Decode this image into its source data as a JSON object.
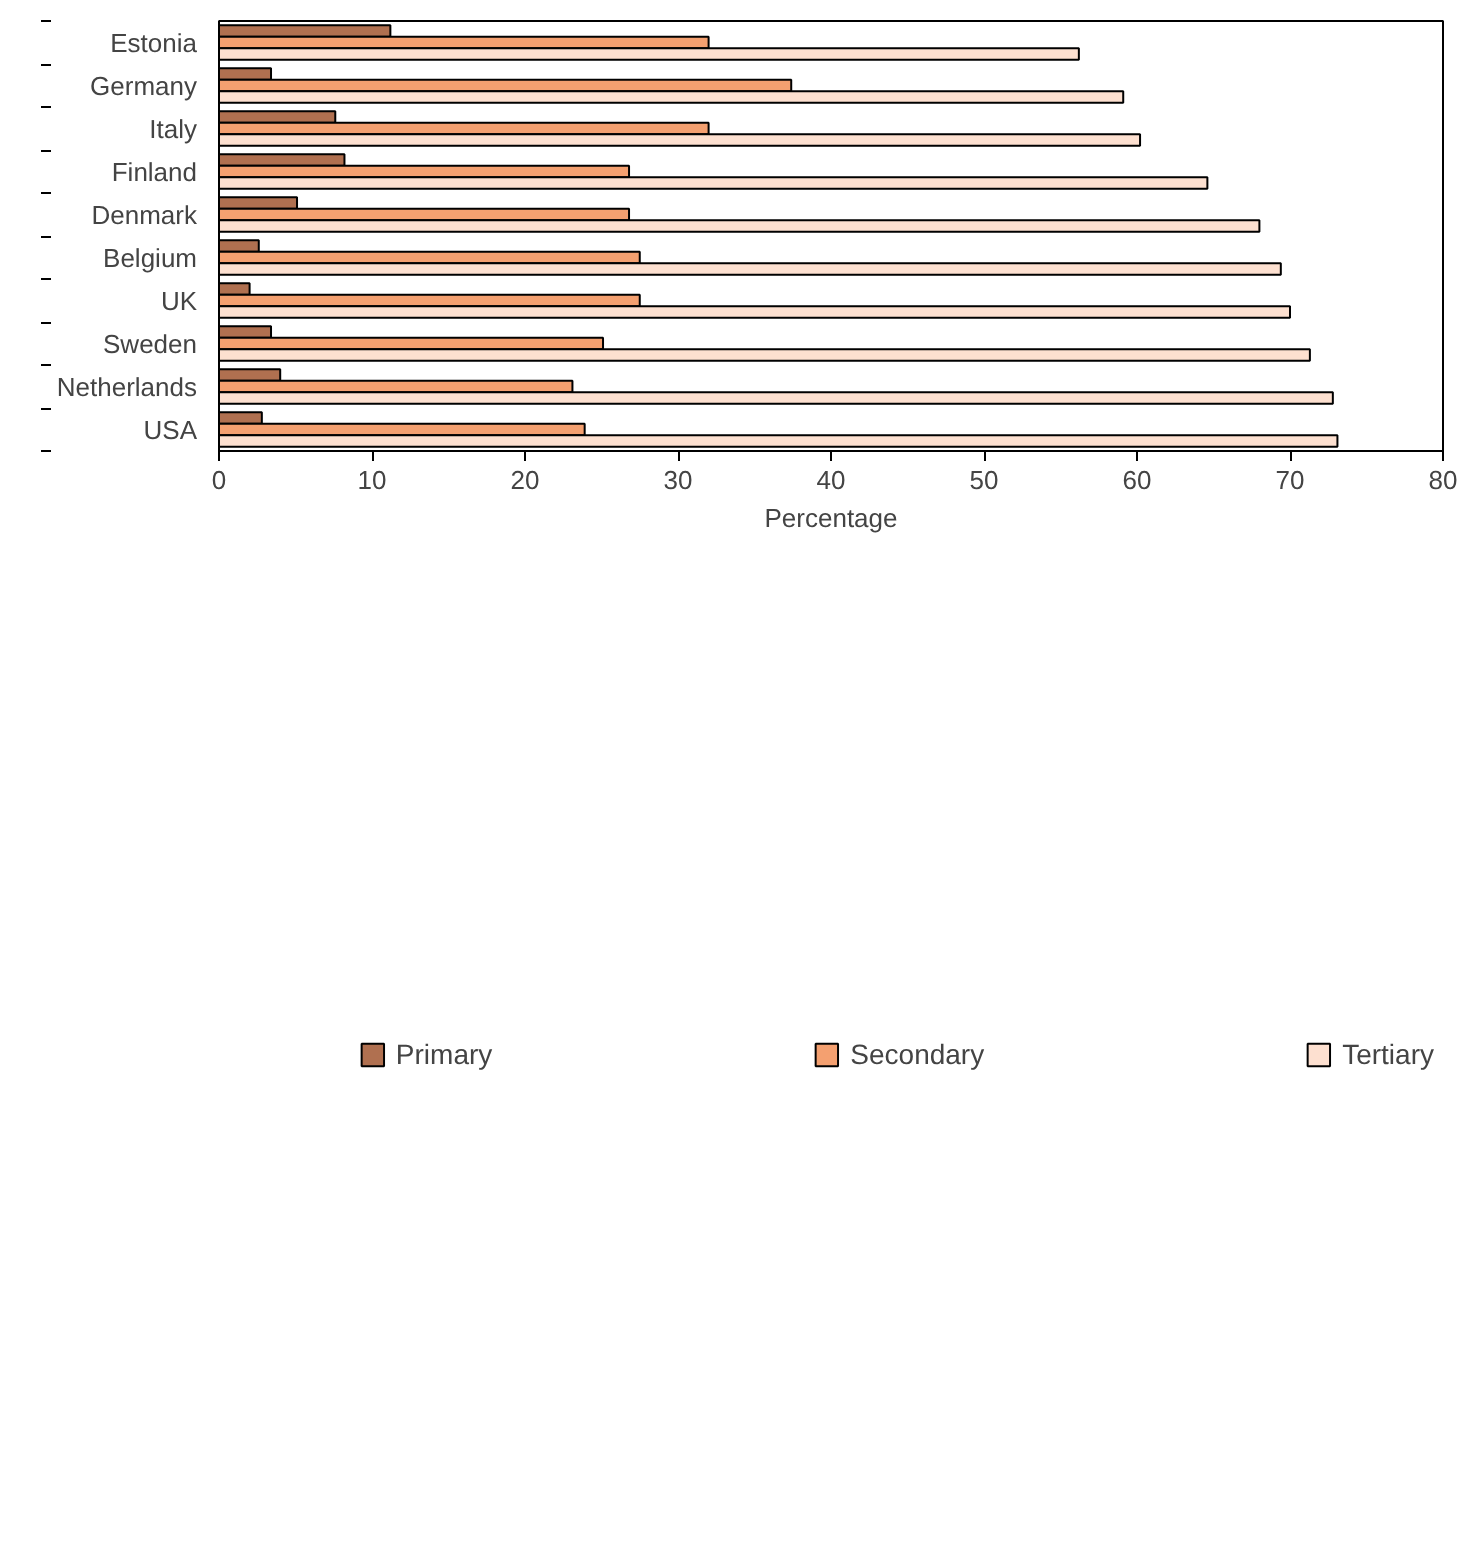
{
  "chart_data": {
    "type": "bar",
    "orientation": "horizontal",
    "xlabel": "Percentage",
    "categories": [
      "Estonia",
      "Germany",
      "Italy",
      "Finland",
      "Denmark",
      "Belgium",
      "UK",
      "Sweden",
      "Netherlands",
      "USA"
    ],
    "series": [
      {
        "name": "Primary",
        "color": "#b07050",
        "values": [
          11.2,
          3.4,
          7.6,
          8.2,
          5.1,
          2.6,
          2.0,
          3.4,
          4.0,
          2.8
        ]
      },
      {
        "name": "Secondary",
        "color": "#f4a070",
        "values": [
          32.0,
          37.4,
          32.0,
          26.8,
          26.8,
          27.5,
          27.5,
          25.1,
          23.1,
          23.9
        ]
      },
      {
        "name": "Tertiary",
        "color": "#fde0d0",
        "values": [
          56.2,
          59.1,
          60.2,
          64.6,
          68.0,
          69.4,
          70.0,
          71.3,
          72.8,
          73.1
        ]
      }
    ],
    "xlim": [
      0,
      80
    ],
    "xticks": [
      0,
      10,
      20,
      30,
      40,
      50,
      60,
      70,
      80
    ],
    "grid": false,
    "legend": "bottom"
  }
}
